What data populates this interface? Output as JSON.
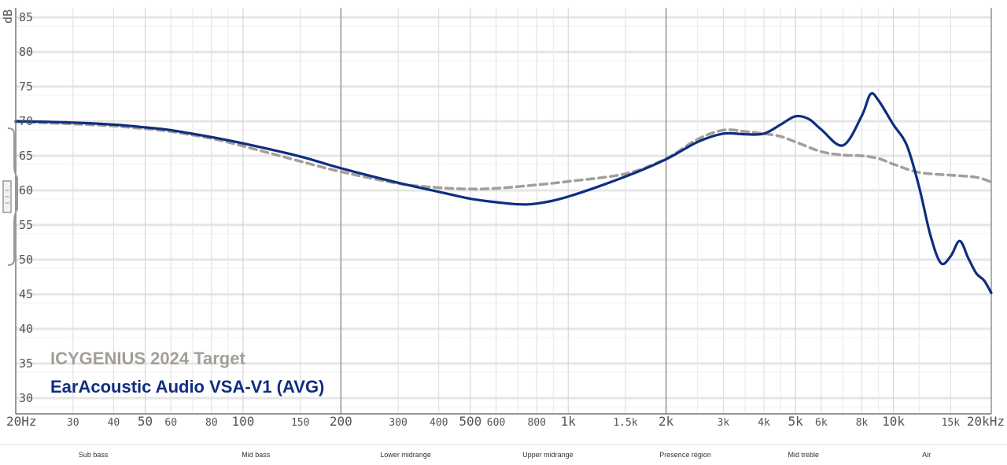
{
  "chart_data": {
    "type": "line",
    "title": "",
    "ylabel": "dB",
    "xlabel": "",
    "xscale": "log",
    "xlim": [
      20,
      20000
    ],
    "ylim": [
      27,
      86
    ],
    "grid": true,
    "legend_position": "bottom-left",
    "yticks": [
      30,
      35,
      40,
      45,
      50,
      55,
      60,
      65,
      70,
      75,
      80,
      85
    ],
    "ytick_labels": [
      "30",
      "35",
      "40",
      "45",
      "50",
      "55",
      "60",
      "65",
      "70",
      "75",
      "80",
      "85"
    ],
    "xticks": [
      {
        "value": 20,
        "label": "20Hz",
        "major": true
      },
      {
        "value": 30,
        "label": "30",
        "major": false
      },
      {
        "value": 40,
        "label": "40",
        "major": false
      },
      {
        "value": 50,
        "label": "50",
        "major": true
      },
      {
        "value": 60,
        "label": "60",
        "major": false
      },
      {
        "value": 80,
        "label": "80",
        "major": false
      },
      {
        "value": 100,
        "label": "100",
        "major": true
      },
      {
        "value": 150,
        "label": "150",
        "major": false
      },
      {
        "value": 200,
        "label": "200",
        "major": true
      },
      {
        "value": 300,
        "label": "300",
        "major": false
      },
      {
        "value": 400,
        "label": "400",
        "major": false
      },
      {
        "value": 500,
        "label": "500",
        "major": true
      },
      {
        "value": 600,
        "label": "600",
        "major": false
      },
      {
        "value": 800,
        "label": "800",
        "major": false
      },
      {
        "value": 1000,
        "label": "1k",
        "major": true
      },
      {
        "value": 1500,
        "label": "1.5k",
        "major": false
      },
      {
        "value": 2000,
        "label": "2k",
        "major": true
      },
      {
        "value": 3000,
        "label": "3k",
        "major": false
      },
      {
        "value": 4000,
        "label": "4k",
        "major": false
      },
      {
        "value": 5000,
        "label": "5k",
        "major": true
      },
      {
        "value": 6000,
        "label": "6k",
        "major": false
      },
      {
        "value": 8000,
        "label": "8k",
        "major": false
      },
      {
        "value": 10000,
        "label": "10k",
        "major": true
      },
      {
        "value": 15000,
        "label": "15k",
        "major": false
      },
      {
        "value": 20000,
        "label": "20kHz",
        "major": true
      }
    ],
    "dark_gridlines": [
      200,
      2000,
      20000
    ],
    "regions": [
      {
        "label": "Sub bass",
        "from": 20,
        "to": 60
      },
      {
        "label": "Mid bass",
        "from": 60,
        "to": 200
      },
      {
        "label": "Lower midrange",
        "from": 200,
        "to": 500
      },
      {
        "label": "Upper midrange",
        "from": 500,
        "to": 1500
      },
      {
        "label": "Presence region",
        "from": 1500,
        "to": 3500
      },
      {
        "label": "Mid treble",
        "from": 3500,
        "to": 8000
      },
      {
        "label": "Air",
        "from": 8000,
        "to": 20000
      }
    ],
    "series": [
      {
        "name": "ICYGENIUS 2024 Target",
        "color": "#a39e98",
        "dashed": true,
        "x": [
          20,
          30,
          40,
          50,
          60,
          80,
          100,
          150,
          200,
          300,
          400,
          500,
          600,
          800,
          1000,
          1500,
          2000,
          2500,
          3000,
          3500,
          4000,
          4500,
          5000,
          6000,
          7000,
          8000,
          9000,
          10000,
          12000,
          15000,
          18000,
          20000
        ],
        "y": [
          69.9,
          69.6,
          69.3,
          68.9,
          68.5,
          67.5,
          66.4,
          64.2,
          62.7,
          61.0,
          60.4,
          60.2,
          60.3,
          60.8,
          61.3,
          62.4,
          64.6,
          67.4,
          68.7,
          68.5,
          68.2,
          67.8,
          67.0,
          65.6,
          65.1,
          65.0,
          64.6,
          63.8,
          62.6,
          62.2,
          61.9,
          61.2
        ]
      },
      {
        "name": "EarAcoustic Audio VSA-V1 (AVG)",
        "color": "#0f2d80",
        "dashed": false,
        "x": [
          20,
          30,
          40,
          50,
          60,
          80,
          100,
          150,
          200,
          300,
          400,
          500,
          600,
          700,
          800,
          1000,
          1500,
          2000,
          2500,
          3000,
          3500,
          4000,
          4500,
          5000,
          5500,
          6000,
          7000,
          8000,
          8500,
          9000,
          10000,
          11000,
          12000,
          13000,
          14000,
          15000,
          16000,
          17000,
          18000,
          19000,
          20000
        ],
        "y": [
          70.0,
          69.8,
          69.5,
          69.1,
          68.7,
          67.7,
          66.8,
          64.9,
          63.2,
          61.1,
          59.8,
          58.8,
          58.3,
          58.0,
          58.1,
          59.1,
          62.0,
          64.5,
          67.0,
          68.2,
          68.1,
          68.2,
          69.5,
          70.7,
          70.3,
          68.8,
          66.5,
          70.8,
          73.9,
          73.0,
          69.5,
          66.5,
          60.5,
          53.5,
          49.5,
          50.5,
          52.7,
          50.2,
          48.0,
          47.0,
          45.2
        ]
      }
    ]
  }
}
